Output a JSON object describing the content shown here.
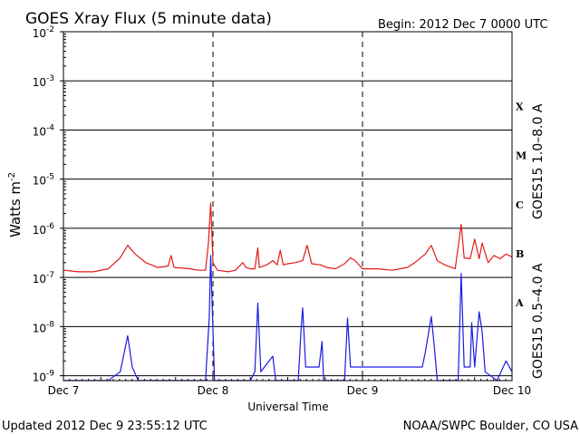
{
  "chart_data": {
    "type": "line",
    "title": "GOES Xray Flux (5 minute data)",
    "begin_label": "Begin:  2012 Dec 7 0000 UTC",
    "xlabel": "Universal Time",
    "ylabel_base": "Watts m",
    "ylabel_exp": "-2",
    "x_ticks": [
      "Dec 7",
      "Dec 8",
      "Dec 9",
      "Dec 10"
    ],
    "xlim_days": [
      0,
      3
    ],
    "ylim_log10": [
      -9.1,
      -2
    ],
    "yscale": "log",
    "grid": true,
    "y_ticks": [
      {
        "base": "10",
        "exp": "-2"
      },
      {
        "base": "10",
        "exp": "-3"
      },
      {
        "base": "10",
        "exp": "-4"
      },
      {
        "base": "10",
        "exp": "-5"
      },
      {
        "base": "10",
        "exp": "-6"
      },
      {
        "base": "10",
        "exp": "-7"
      },
      {
        "base": "10",
        "exp": "-8"
      },
      {
        "base": "10",
        "exp": "-9"
      }
    ],
    "flare_classes": [
      "X",
      "M",
      "C",
      "B",
      "A"
    ],
    "series": [
      {
        "name": "GOES15 1.0–8.0 A",
        "color": "#e31a1a",
        "points": [
          [
            0.0,
            1.4e-07
          ],
          [
            0.1,
            1.3e-07
          ],
          [
            0.2,
            1.3e-07
          ],
          [
            0.3,
            1.5e-07
          ],
          [
            0.38,
            2.5e-07
          ],
          [
            0.43,
            4.5e-07
          ],
          [
            0.48,
            3e-07
          ],
          [
            0.55,
            2e-07
          ],
          [
            0.63,
            1.6e-07
          ],
          [
            0.7,
            1.7e-07
          ],
          [
            0.72,
            2.8e-07
          ],
          [
            0.74,
            1.6e-07
          ],
          [
            0.85,
            1.5e-07
          ],
          [
            0.9,
            1.4e-07
          ],
          [
            0.95,
            1.4e-07
          ],
          [
            0.97,
            5e-07
          ],
          [
            0.985,
            3.3e-06
          ],
          [
            1.0,
            2e-07
          ],
          [
            1.03,
            1.4e-07
          ],
          [
            1.1,
            1.3e-07
          ],
          [
            1.15,
            1.4e-07
          ],
          [
            1.2,
            2e-07
          ],
          [
            1.22,
            1.6e-07
          ],
          [
            1.25,
            1.5e-07
          ],
          [
            1.28,
            1.5e-07
          ],
          [
            1.3,
            4e-07
          ],
          [
            1.31,
            1.6e-07
          ],
          [
            1.36,
            1.8e-07
          ],
          [
            1.4,
            2.2e-07
          ],
          [
            1.43,
            1.8e-07
          ],
          [
            1.45,
            3.6e-07
          ],
          [
            1.47,
            1.8e-07
          ],
          [
            1.5,
            1.9e-07
          ],
          [
            1.55,
            2e-07
          ],
          [
            1.6,
            2.2e-07
          ],
          [
            1.63,
            4.5e-07
          ],
          [
            1.66,
            1.9e-07
          ],
          [
            1.72,
            1.8e-07
          ],
          [
            1.76,
            1.6e-07
          ],
          [
            1.82,
            1.5e-07
          ],
          [
            1.88,
            1.9e-07
          ],
          [
            1.92,
            2.5e-07
          ],
          [
            1.95,
            2.2e-07
          ],
          [
            2.0,
            1.5e-07
          ],
          [
            2.1,
            1.5e-07
          ],
          [
            2.2,
            1.4e-07
          ],
          [
            2.3,
            1.6e-07
          ],
          [
            2.35,
            2e-07
          ],
          [
            2.42,
            3e-07
          ],
          [
            2.46,
            4.5e-07
          ],
          [
            2.5,
            2.2e-07
          ],
          [
            2.55,
            1.8e-07
          ],
          [
            2.62,
            1.5e-07
          ],
          [
            2.66,
            1.2e-06
          ],
          [
            2.68,
            2.5e-07
          ],
          [
            2.72,
            2.4e-07
          ],
          [
            2.75,
            6e-07
          ],
          [
            2.78,
            2.4e-07
          ],
          [
            2.8,
            5e-07
          ],
          [
            2.84,
            2e-07
          ],
          [
            2.88,
            2.8e-07
          ],
          [
            2.92,
            2.4e-07
          ],
          [
            2.96,
            3e-07
          ],
          [
            3.0,
            2.6e-07
          ]
        ]
      },
      {
        "name": "GOES15 0.5–4.0 A",
        "color": "#1a1ae3",
        "points": [
          [
            0.0,
            8e-10
          ],
          [
            0.3,
            8e-10
          ],
          [
            0.38,
            1.2e-09
          ],
          [
            0.43,
            6.5e-09
          ],
          [
            0.46,
            1.5e-09
          ],
          [
            0.5,
            8e-10
          ],
          [
            0.95,
            8e-10
          ],
          [
            0.975,
            1.5e-08
          ],
          [
            0.985,
            2.8e-07
          ],
          [
            0.995,
            2.5e-08
          ],
          [
            1.01,
            8e-10
          ],
          [
            1.25,
            8e-10
          ],
          [
            1.28,
            1.2e-09
          ],
          [
            1.3,
            3e-08
          ],
          [
            1.32,
            1.2e-09
          ],
          [
            1.4,
            2.5e-09
          ],
          [
            1.42,
            8e-10
          ],
          [
            1.57,
            8e-10
          ],
          [
            1.59,
            1e-08
          ],
          [
            1.6,
            2.4e-08
          ],
          [
            1.62,
            1.5e-09
          ],
          [
            1.71,
            1.5e-09
          ],
          [
            1.73,
            5e-09
          ],
          [
            1.74,
            8e-10
          ],
          [
            1.88,
            8e-10
          ],
          [
            1.9,
            1.5e-08
          ],
          [
            1.92,
            1.5e-09
          ],
          [
            2.4,
            1.5e-09
          ],
          [
            2.42,
            3e-09
          ],
          [
            2.46,
            1.6e-08
          ],
          [
            2.48,
            4e-09
          ],
          [
            2.5,
            8e-10
          ],
          [
            2.64,
            8e-10
          ],
          [
            2.66,
            1.2e-07
          ],
          [
            2.68,
            1.5e-09
          ],
          [
            2.72,
            1.5e-09
          ],
          [
            2.73,
            1.2e-08
          ],
          [
            2.75,
            1.5e-09
          ],
          [
            2.78,
            2e-08
          ],
          [
            2.8,
            8e-09
          ],
          [
            2.82,
            1.2e-09
          ],
          [
            2.9,
            8e-10
          ],
          [
            2.96,
            2e-09
          ],
          [
            3.0,
            1.2e-09
          ]
        ]
      }
    ]
  },
  "footer": {
    "updated": "Updated 2012 Dec  9 23:55:12 UTC",
    "source": "NOAA/SWPC Boulder, CO USA"
  }
}
